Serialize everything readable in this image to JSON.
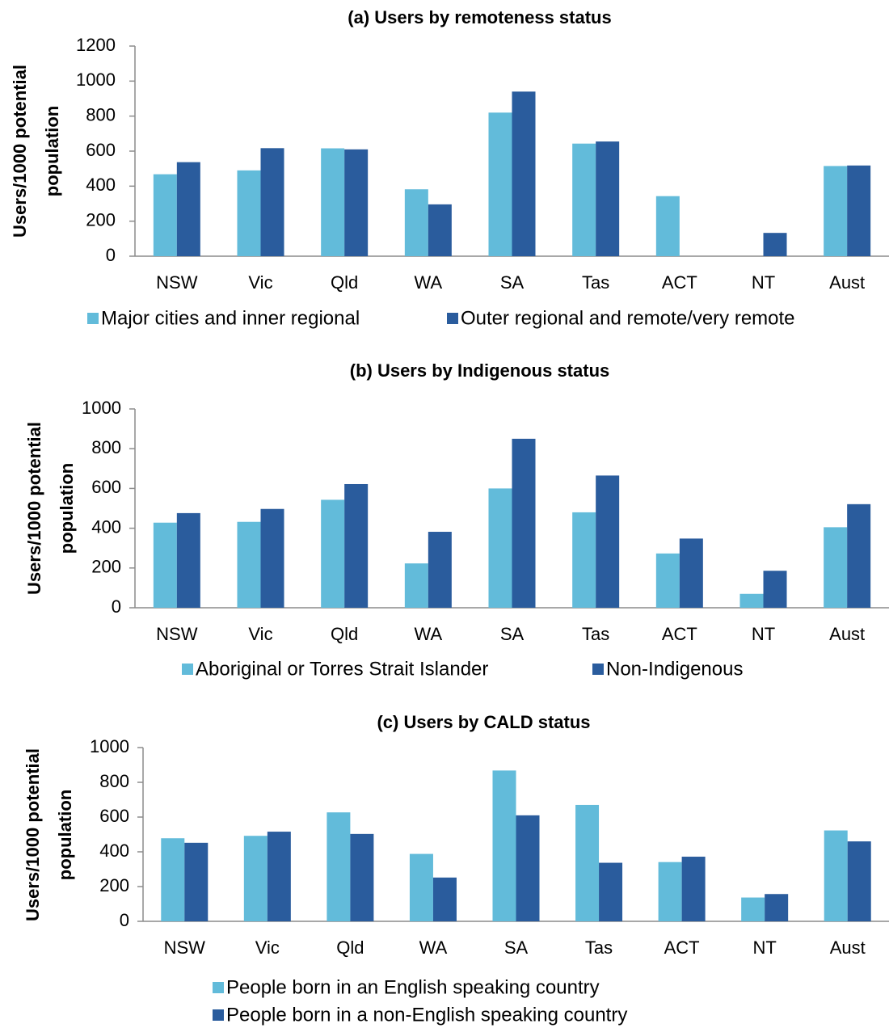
{
  "colors": {
    "series1": "#62BBDA",
    "series2": "#2A5C9D",
    "axis": "#8C8C8C"
  },
  "chart_data": [
    {
      "type": "bar",
      "title": "(a) Users by remoteness status",
      "ylabel_lines": [
        "Users/1000 potential",
        "population"
      ],
      "xlabel": "",
      "ylim": [
        0,
        1200
      ],
      "yticks": [
        0,
        200,
        400,
        600,
        800,
        1000,
        1200
      ],
      "categories": [
        "NSW",
        "Vic",
        "Qld",
        "WA",
        "SA",
        "Tas",
        "ACT",
        "NT",
        "Aust"
      ],
      "series": [
        {
          "name": "Major cities and inner regional",
          "values": [
            468,
            490,
            616,
            382,
            820,
            643,
            343,
            0,
            515
          ]
        },
        {
          "name": "Outer regional and remote/very remote",
          "values": [
            537,
            617,
            610,
            296,
            940,
            655,
            0,
            133,
            518
          ]
        }
      ],
      "legend": "bottom-row"
    },
    {
      "type": "bar",
      "title": "(b) Users by Indigenous status",
      "ylabel_lines": [
        "Users/1000 potential",
        "population"
      ],
      "xlabel": "",
      "ylim": [
        0,
        1000
      ],
      "yticks": [
        0,
        200,
        400,
        600,
        800,
        1000
      ],
      "categories": [
        "NSW",
        "Vic",
        "Qld",
        "WA",
        "SA",
        "Tas",
        "ACT",
        "NT",
        "Aust"
      ],
      "series": [
        {
          "name": "Aboriginal or Torres Strait Islander",
          "values": [
            428,
            432,
            543,
            223,
            600,
            480,
            273,
            70,
            405
          ]
        },
        {
          "name": "Non-Indigenous",
          "values": [
            476,
            497,
            622,
            382,
            850,
            665,
            348,
            186,
            521
          ]
        }
      ],
      "legend": "bottom-row"
    },
    {
      "type": "bar",
      "title": "(c) Users by CALD status",
      "ylabel_lines": [
        "Users/1000 potential",
        "population"
      ],
      "xlabel": "",
      "ylim": [
        0,
        1000
      ],
      "yticks": [
        0,
        200,
        400,
        600,
        800,
        1000
      ],
      "categories": [
        "NSW",
        "Vic",
        "Qld",
        "WA",
        "SA",
        "Tas",
        "ACT",
        "NT",
        "Aust"
      ],
      "series": [
        {
          "name": "People born in an English speaking country",
          "values": [
            478,
            492,
            627,
            388,
            868,
            670,
            341,
            137,
            523
          ]
        },
        {
          "name": "People born in a non-English speaking country",
          "values": [
            452,
            516,
            503,
            252,
            610,
            337,
            372,
            157,
            460
          ]
        }
      ],
      "legend": "bottom-stacked"
    }
  ]
}
